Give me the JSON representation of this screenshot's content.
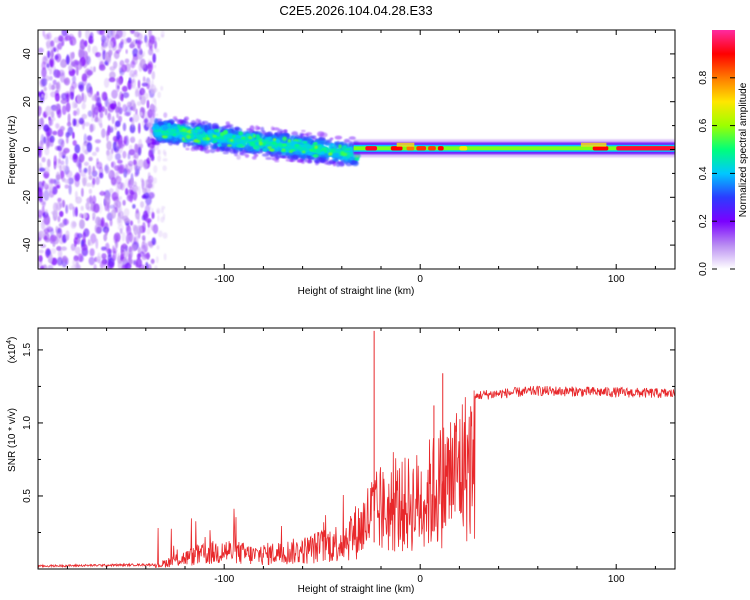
{
  "title": "C2E5.2026.104.04.28.E33",
  "chart_data": [
    {
      "type": "heatmap",
      "name": "spectrogram",
      "xlabel": "Height of straight line (km)",
      "ylabel": "Frequency (Hz)",
      "xlim": [
        -195,
        130
      ],
      "ylim": [
        -50,
        50
      ],
      "xticks": [
        -100,
        0,
        100
      ],
      "yticks": [
        -40,
        -20,
        0,
        20,
        40
      ],
      "colorbar": {
        "label": "Normalized spectral amplitude",
        "range": [
          0,
          1
        ],
        "ticks": [
          0.0,
          0.2,
          0.4,
          0.6,
          0.8
        ],
        "tick_labels": [
          "0.0",
          "0.2",
          "0.4",
          "0.6",
          "0.8"
        ],
        "colors": [
          "#ffffff",
          "#b98cf2",
          "#7a00ff",
          "#2b3cff",
          "#00c8ff",
          "#00ff7a",
          "#9cff00",
          "#ffe600",
          "#ff7a00",
          "#ff0000",
          "#ff2aa0"
        ]
      },
      "segments": [
        {
          "x": [
            -195,
            -135
          ],
          "center_freq": 0,
          "spread_hz": 50,
          "intensity": 0.12,
          "description_key": "noise"
        },
        {
          "x": [
            -135,
            -32
          ],
          "center_freq_start": 8,
          "center_freq_end": -2,
          "spread_hz": 7,
          "intensity": 0.4
        },
        {
          "x": [
            -32,
            130
          ],
          "center_freq": 0.5,
          "spread_hz": 2,
          "intensity": 0.7
        }
      ]
    },
    {
      "type": "line",
      "name": "snr",
      "xlabel": "Height of straight line (km)",
      "ylabel": "SNR (10 * v/v)",
      "scale_label": "(x10",
      "scale_exp": "4",
      "xlim": [
        -195,
        130
      ],
      "ylim": [
        0,
        1.65
      ],
      "xticks": [
        -100,
        0,
        100
      ],
      "yticks": [
        0.5,
        1.0,
        1.5
      ],
      "ytick_labels": [
        "0.5",
        "1.0",
        "1.5"
      ],
      "color": "#e8282b",
      "series_envelope": [
        {
          "x": -195,
          "y": 0.02
        },
        {
          "x": -135,
          "y": 0.03
        },
        {
          "x": -125,
          "y": 0.1
        },
        {
          "x": -100,
          "y": 0.2
        },
        {
          "x": -85,
          "y": 0.15
        },
        {
          "x": -60,
          "y": 0.2
        },
        {
          "x": -40,
          "y": 0.3
        },
        {
          "x": -30,
          "y": 0.45
        },
        {
          "x": -25,
          "y": 0.6
        },
        {
          "x": -15,
          "y": 0.65
        },
        {
          "x": 0,
          "y": 0.75
        },
        {
          "x": 10,
          "y": 0.9
        },
        {
          "x": 20,
          "y": 1.1
        },
        {
          "x": 30,
          "y": 1.19
        },
        {
          "x": 60,
          "y": 1.22
        },
        {
          "x": 100,
          "y": 1.21
        },
        {
          "x": 130,
          "y": 1.2
        }
      ],
      "peaks": [
        {
          "x": -23.5,
          "y": 1.63
        },
        {
          "x": 11.5,
          "y": 1.34
        },
        {
          "x": 7,
          "y": 1.12
        }
      ]
    }
  ]
}
